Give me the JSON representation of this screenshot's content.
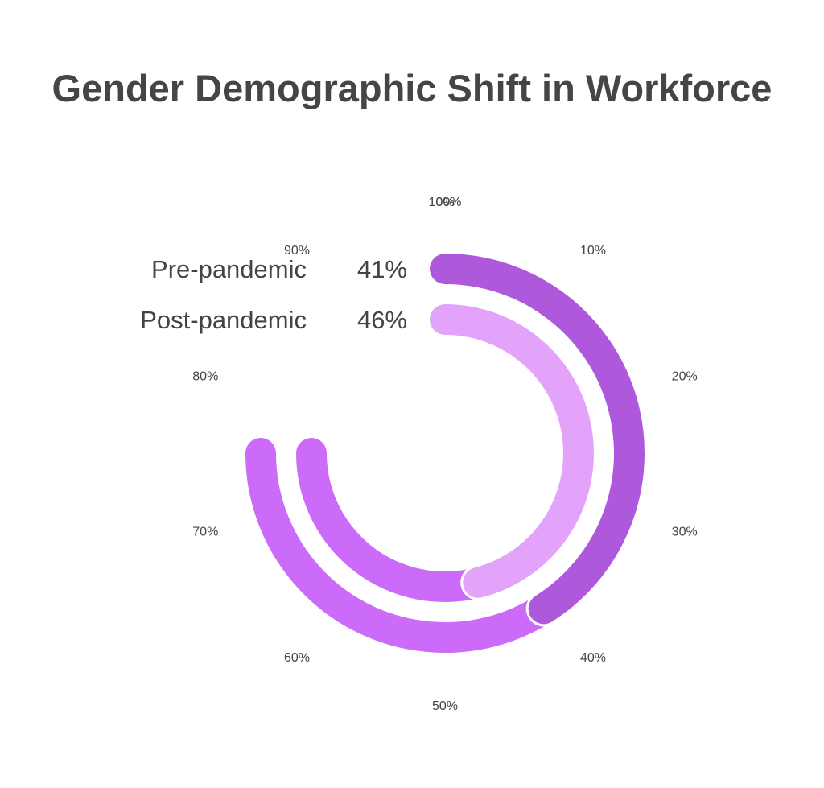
{
  "chart_data": {
    "type": "radial-bar",
    "title": "Gender Demographic Shift in Workforce",
    "axis": {
      "min": 0,
      "max": 100,
      "ticks": [
        "0%",
        "10%",
        "20%",
        "30%",
        "40%",
        "50%",
        "60%",
        "70%",
        "80%",
        "90%",
        "100%"
      ]
    },
    "track_extent": 75,
    "track_color": "#cc6bf9",
    "series": [
      {
        "name": "Pre-pandemic",
        "value": 41,
        "label": "41%",
        "color": "#ae59dc"
      },
      {
        "name": "Post-pandemic",
        "value": 46,
        "label": "46%",
        "color": "#e3a3fb"
      }
    ]
  }
}
